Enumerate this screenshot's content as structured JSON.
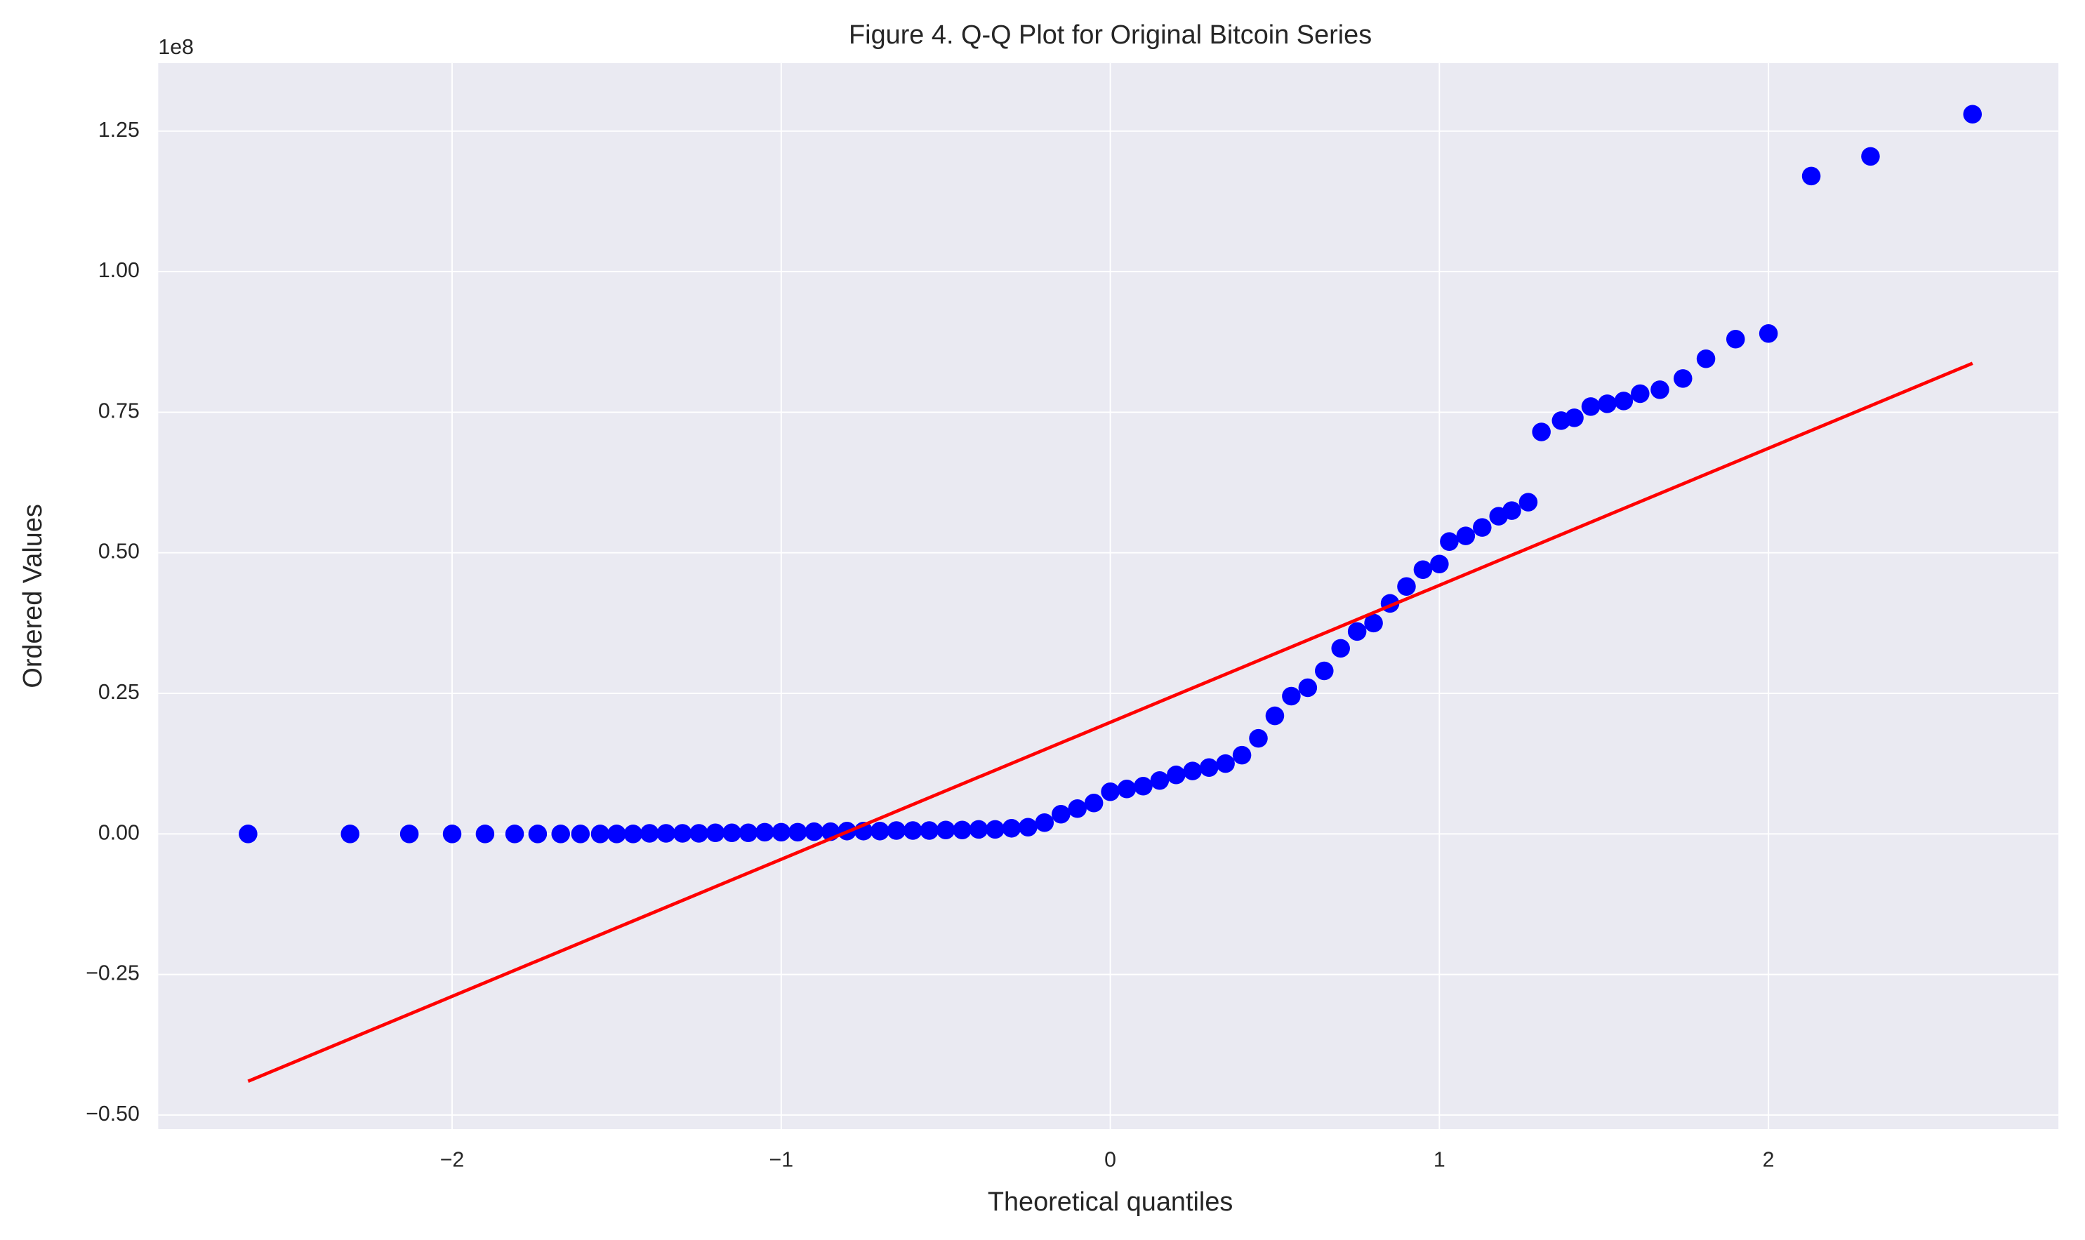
{
  "chart_data": {
    "type": "scatter",
    "title": "Figure 4. Q-Q Plot for Original Bitcoin Series",
    "x_label": "Theoretical quantiles",
    "y_label": "Ordered Values",
    "y_offset_label": "1e8",
    "grid": true,
    "xlim": [
      -2.893,
      2.881
    ],
    "ylim": [
      -0.525,
      1.371
    ],
    "xticks": [
      {
        "value": -2,
        "label": "−2"
      },
      {
        "value": -1,
        "label": "−1"
      },
      0,
      1,
      2
    ],
    "yticks": [
      {
        "value": -0.5,
        "label": "−0.50"
      },
      {
        "value": -0.25,
        "label": "−0.25"
      },
      {
        "value": 0,
        "label": "0.00"
      },
      {
        "value": 0.25,
        "label": "0.25"
      },
      {
        "value": 0.5,
        "label": "0.50"
      },
      {
        "value": 0.75,
        "label": "0.75"
      },
      {
        "value": 1,
        "label": "1.00"
      },
      {
        "value": 1.25,
        "label": "1.25"
      }
    ],
    "points": {
      "color": "#0000ff",
      "x": [
        -2.62,
        -2.31,
        -2.13,
        -2.0,
        -1.9,
        -1.81,
        -1.74,
        -1.67,
        -1.61,
        -1.55,
        -1.5,
        -1.45,
        -1.4,
        -1.35,
        -1.3,
        -1.25,
        -1.2,
        -1.15,
        -1.1,
        -1.05,
        -1.0,
        -0.95,
        -0.9,
        -0.85,
        -0.8,
        -0.75,
        -0.7,
        -0.65,
        -0.6,
        -0.55,
        -0.5,
        -0.45,
        -0.4,
        -0.35,
        -0.3,
        -0.25,
        -0.2,
        -0.15,
        -0.1,
        -0.05,
        0.0,
        0.05,
        0.1,
        0.15,
        0.2,
        0.25,
        0.3,
        0.35,
        0.4,
        0.45,
        0.5,
        0.55,
        0.6,
        0.65,
        0.7,
        0.75,
        0.8,
        0.85,
        0.9,
        0.95,
        1.0,
        1.03,
        1.08,
        1.13,
        1.18,
        1.22,
        1.27,
        1.31,
        1.37,
        1.41,
        1.46,
        1.51,
        1.56,
        1.61,
        1.67,
        1.74,
        1.81,
        1.9,
        2.0,
        2.13,
        2.31,
        2.62
      ],
      "values": [
        0,
        0,
        0,
        0,
        0,
        0,
        0,
        0,
        0,
        0,
        0,
        0,
        0.001,
        0.001,
        0.001,
        0.001,
        0.002,
        0.002,
        0.002,
        0.003,
        0.003,
        0.003,
        0.004,
        0.004,
        0.005,
        0.005,
        0.005,
        0.006,
        0.006,
        0.006,
        0.007,
        0.007,
        0.008,
        0.008,
        0.01,
        0.012,
        0.02,
        0.035,
        0.045,
        0.055,
        0.075,
        0.08,
        0.085,
        0.095,
        0.105,
        0.112,
        0.118,
        0.125,
        0.14,
        0.17,
        0.21,
        0.245,
        0.26,
        0.29,
        0.33,
        0.36,
        0.375,
        0.41,
        0.44,
        0.47,
        0.48,
        0.52,
        0.53,
        0.545,
        0.565,
        0.575,
        0.59,
        0.715,
        0.735,
        0.74,
        0.76,
        0.765,
        0.77,
        0.783,
        0.79,
        0.81,
        0.845,
        0.88,
        0.89,
        1.17,
        1.205,
        1.28
      ]
    },
    "fit_line": {
      "color": "#ff0000",
      "x": [
        -2.62,
        2.62
      ],
      "values": [
        -0.44,
        0.837
      ]
    }
  }
}
